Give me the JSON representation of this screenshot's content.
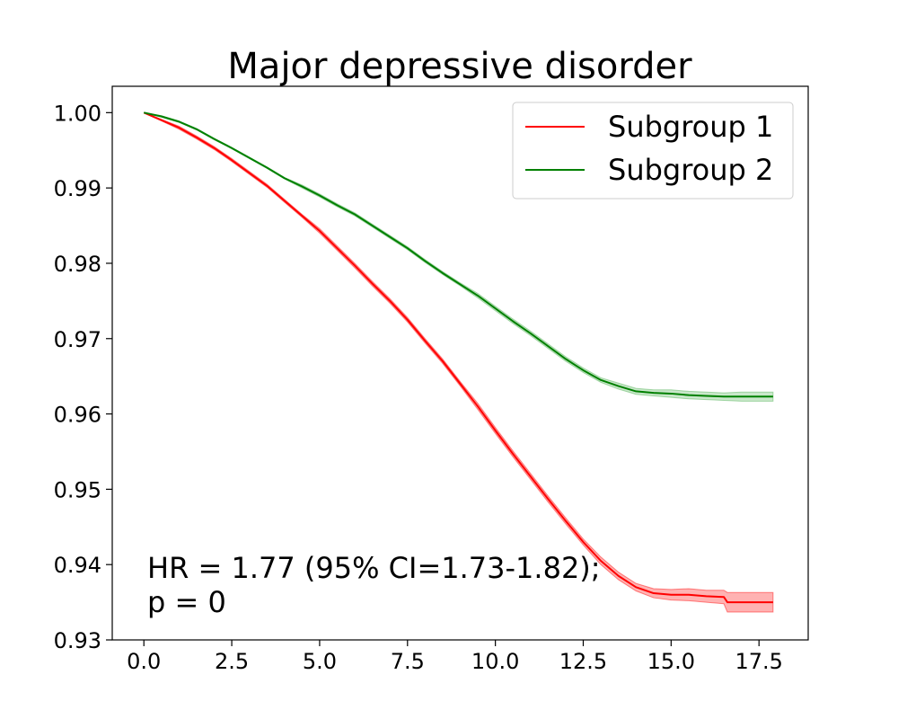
{
  "chart_data": {
    "type": "line",
    "title": "Major depressive disorder",
    "xlabel": "",
    "ylabel": "",
    "xlim": [
      -0.9,
      18.9
    ],
    "ylim": [
      0.93,
      1.0035
    ],
    "x_ticks": [
      0.0,
      2.5,
      5.0,
      7.5,
      10.0,
      12.5,
      15.0,
      17.5
    ],
    "x_tick_labels": [
      "0.0",
      "2.5",
      "5.0",
      "7.5",
      "10.0",
      "12.5",
      "15.0",
      "17.5"
    ],
    "y_ticks": [
      0.93,
      0.94,
      0.95,
      0.96,
      0.97,
      0.98,
      0.99,
      1.0
    ],
    "y_tick_labels": [
      "0.93",
      "0.94",
      "0.95",
      "0.96",
      "0.97",
      "0.98",
      "0.99",
      "1.00"
    ],
    "grid": false,
    "legend_position": "top-right",
    "series": [
      {
        "name": "Subgroup 1",
        "color": "#ff0000",
        "ci_color": "#ff0000",
        "x": [
          0.0,
          0.5,
          1.0,
          1.5,
          2.0,
          2.5,
          3.0,
          3.5,
          4.0,
          4.5,
          5.0,
          5.5,
          6.0,
          6.5,
          7.0,
          7.5,
          8.0,
          8.5,
          9.0,
          9.5,
          10.0,
          10.5,
          11.0,
          11.5,
          12.0,
          12.5,
          13.0,
          13.5,
          14.0,
          14.5,
          15.0,
          15.5,
          16.0,
          16.5,
          16.6,
          17.0,
          17.5,
          17.9
        ],
        "y": [
          1.0,
          0.999,
          0.998,
          0.9967,
          0.9953,
          0.9937,
          0.992,
          0.9903,
          0.9883,
          0.9863,
          0.9843,
          0.982,
          0.9797,
          0.9773,
          0.975,
          0.9725,
          0.9697,
          0.967,
          0.964,
          0.961,
          0.9578,
          0.9547,
          0.9517,
          0.9487,
          0.9458,
          0.943,
          0.9405,
          0.9385,
          0.937,
          0.9362,
          0.936,
          0.936,
          0.9358,
          0.9357,
          0.935,
          0.935,
          0.935,
          0.935
        ],
        "ci_lower": [
          1.0,
          0.9989,
          0.9978,
          0.9965,
          0.9951,
          0.9935,
          0.9918,
          0.9901,
          0.9881,
          0.9861,
          0.984,
          0.9817,
          0.9794,
          0.977,
          0.9747,
          0.9722,
          0.9694,
          0.9667,
          0.9637,
          0.9606,
          0.9574,
          0.9543,
          0.9513,
          0.9483,
          0.9454,
          0.9426,
          0.94,
          0.938,
          0.9365,
          0.9356,
          0.9353,
          0.9352,
          0.935,
          0.9348,
          0.9337,
          0.9337,
          0.9337,
          0.9337
        ],
        "ci_upper": [
          1.0,
          0.9991,
          0.9982,
          0.9969,
          0.9955,
          0.9939,
          0.9922,
          0.9905,
          0.9885,
          0.9865,
          0.9846,
          0.9823,
          0.98,
          0.9776,
          0.9753,
          0.9728,
          0.97,
          0.9673,
          0.9643,
          0.9614,
          0.9582,
          0.9551,
          0.9521,
          0.9491,
          0.9462,
          0.9434,
          0.941,
          0.939,
          0.9375,
          0.9368,
          0.9367,
          0.9368,
          0.9366,
          0.9366,
          0.9363,
          0.9363,
          0.9363,
          0.9363
        ]
      },
      {
        "name": "Subgroup 2",
        "color": "#008000",
        "ci_color": "#4caf50",
        "x": [
          0.0,
          0.5,
          1.0,
          1.5,
          2.0,
          2.5,
          3.0,
          3.5,
          4.0,
          4.5,
          5.0,
          5.5,
          6.0,
          6.5,
          7.0,
          7.5,
          8.0,
          8.5,
          9.0,
          9.5,
          10.0,
          10.5,
          11.0,
          11.5,
          12.0,
          12.5,
          13.0,
          13.5,
          14.0,
          14.5,
          15.0,
          15.5,
          16.0,
          16.5,
          17.0,
          17.5,
          17.9
        ],
        "y": [
          1.0,
          0.9995,
          0.9988,
          0.9978,
          0.9965,
          0.9953,
          0.994,
          0.9927,
          0.9913,
          0.9902,
          0.989,
          0.9877,
          0.9865,
          0.985,
          0.9835,
          0.982,
          0.9803,
          0.9787,
          0.9772,
          0.9757,
          0.974,
          0.9723,
          0.9707,
          0.969,
          0.9673,
          0.9658,
          0.9645,
          0.9637,
          0.963,
          0.9628,
          0.9627,
          0.9625,
          0.9624,
          0.9623,
          0.9623,
          0.9623,
          0.9623
        ],
        "ci_lower": [
          1.0,
          0.9994,
          0.9987,
          0.9977,
          0.9964,
          0.9952,
          0.9939,
          0.9926,
          0.9912,
          0.99,
          0.9888,
          0.9875,
          0.9863,
          0.9848,
          0.9833,
          0.9818,
          0.9801,
          0.9785,
          0.977,
          0.9754,
          0.9737,
          0.972,
          0.9704,
          0.9687,
          0.967,
          0.9655,
          0.9642,
          0.9633,
          0.9626,
          0.9624,
          0.9622,
          0.962,
          0.9619,
          0.9618,
          0.9617,
          0.9617,
          0.9617
        ],
        "ci_upper": [
          1.0,
          0.9996,
          0.9989,
          0.9979,
          0.9966,
          0.9954,
          0.9941,
          0.9928,
          0.9914,
          0.9904,
          0.9892,
          0.9879,
          0.9867,
          0.9852,
          0.9837,
          0.9822,
          0.9805,
          0.9789,
          0.9774,
          0.976,
          0.9743,
          0.9726,
          0.971,
          0.9693,
          0.9676,
          0.9661,
          0.9648,
          0.9641,
          0.9634,
          0.9632,
          0.9632,
          0.963,
          0.9629,
          0.9628,
          0.9629,
          0.9629,
          0.9629
        ]
      }
    ],
    "annotations": [
      "HR = 1.77 (95% CI=1.73-1.82);",
      "p = 0"
    ]
  }
}
